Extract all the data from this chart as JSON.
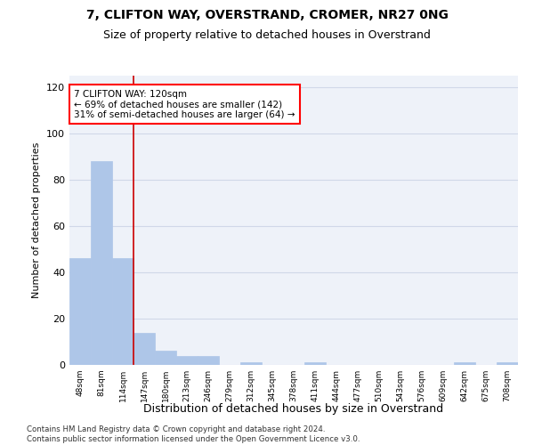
{
  "title": "7, CLIFTON WAY, OVERSTRAND, CROMER, NR27 0NG",
  "subtitle": "Size of property relative to detached houses in Overstrand",
  "xlabel": "Distribution of detached houses by size in Overstrand",
  "ylabel": "Number of detached properties",
  "bar_color": "#aec6e8",
  "bar_edge_color": "#aec6e8",
  "categories": [
    "48sqm",
    "81sqm",
    "114sqm",
    "147sqm",
    "180sqm",
    "213sqm",
    "246sqm",
    "279sqm",
    "312sqm",
    "345sqm",
    "378sqm",
    "411sqm",
    "444sqm",
    "477sqm",
    "510sqm",
    "543sqm",
    "576sqm",
    "609sqm",
    "642sqm",
    "675sqm",
    "708sqm"
  ],
  "values": [
    46,
    88,
    46,
    14,
    6,
    4,
    4,
    0,
    1,
    0,
    0,
    1,
    0,
    0,
    0,
    0,
    0,
    0,
    1,
    0,
    1
  ],
  "annotation_text": "7 CLIFTON WAY: 120sqm\n← 69% of detached houses are smaller (142)\n31% of semi-detached houses are larger (64) →",
  "vline_x": 2.5,
  "vline_color": "#cc0000",
  "grid_color": "#d0d8e8",
  "background_color": "#eef2f9",
  "footnote": "Contains HM Land Registry data © Crown copyright and database right 2024.\nContains public sector information licensed under the Open Government Licence v3.0.",
  "ylim": [
    0,
    125
  ],
  "yticks": [
    0,
    20,
    40,
    60,
    80,
    100,
    120
  ]
}
